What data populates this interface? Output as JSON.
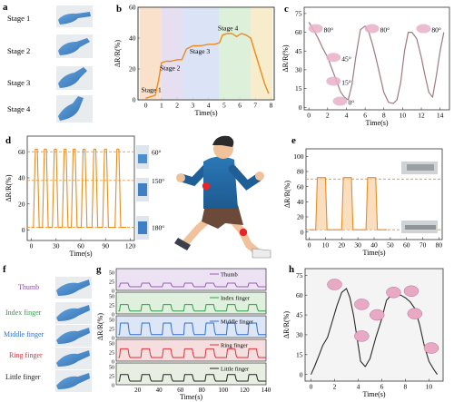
{
  "panels": {
    "a": {
      "letter": "a",
      "stages": [
        "Stage 1",
        "Stage 2",
        "Stage 3",
        "Stage 4"
      ]
    },
    "b": {
      "letter": "b"
    },
    "c": {
      "letter": "c"
    },
    "d": {
      "letter": "d"
    },
    "e": {
      "letter": "e"
    },
    "f": {
      "letter": "f"
    },
    "g": {
      "letter": "g"
    },
    "h": {
      "letter": "h"
    }
  },
  "colors": {
    "orange": "#ef8a1e",
    "mauve": "#a0787e",
    "dark": "#2a2a2a",
    "thumb": "#9b59b6",
    "index": "#2e9e44",
    "middle": "#2f6fd1",
    "ring": "#e0303a",
    "little": "#222222"
  },
  "chart_data": [
    {
      "panel": "b",
      "type": "line",
      "xlabel": "Time(s)",
      "ylabel": "ΔR/R(%)",
      "xlim": [
        -0.5,
        8.2
      ],
      "ylim": [
        0,
        60
      ],
      "xticks": [
        0,
        1,
        2,
        3,
        4,
        5,
        6,
        7,
        8
      ],
      "yticks": [
        0,
        20,
        40,
        60
      ],
      "regions": [
        {
          "from": -0.4,
          "to": 1.0,
          "color": "#f9dcc2"
        },
        {
          "from": 1.0,
          "to": 2.4,
          "color": "#e2d9ee"
        },
        {
          "from": 2.4,
          "to": 4.7,
          "color": "#d3dff5"
        },
        {
          "from": 4.7,
          "to": 6.7,
          "color": "#d7edd2"
        },
        {
          "from": 6.7,
          "to": 8.1,
          "color": "#f6eac3"
        }
      ],
      "annotations": [
        {
          "text": "Stage 1",
          "x": -0.3,
          "y": 5
        },
        {
          "text": "Stage 2",
          "x": 0.9,
          "y": 19
        },
        {
          "text": "Stage 3",
          "x": 2.8,
          "y": 30
        },
        {
          "text": "Stage 4",
          "x": 4.6,
          "y": 45
        }
      ],
      "series": [
        {
          "x": [
            0,
            0.6,
            0.8,
            1.0,
            1.3,
            1.6,
            2.0,
            2.3,
            2.6,
            2.8,
            3.0,
            3.5,
            4.0,
            4.4,
            4.7,
            4.9,
            5.2,
            5.5,
            5.8,
            6.1,
            6.4,
            6.7,
            7.0,
            7.3,
            7.6,
            7.85
          ],
          "y": [
            1,
            3,
            12,
            24,
            25,
            25,
            26,
            26,
            33,
            34,
            35,
            35,
            36,
            36,
            37,
            42,
            43,
            43,
            41,
            43,
            42,
            40,
            30,
            20,
            10,
            4
          ]
        }
      ]
    },
    {
      "panel": "c",
      "type": "line",
      "xlabel": "Time(s)",
      "ylabel": "ΔR/R(%)",
      "xlim": [
        -0.5,
        15
      ],
      "ylim": [
        -2,
        80
      ],
      "xticks": [
        0,
        2,
        4,
        6,
        8,
        10,
        12,
        14
      ],
      "yticks": [
        0,
        15,
        30,
        45,
        60,
        75
      ],
      "annotations": [
        {
          "text": "80°",
          "x": 1.6,
          "y": 60
        },
        {
          "text": "45°",
          "x": 3.5,
          "y": 37
        },
        {
          "text": "15°",
          "x": 3.5,
          "y": 18
        },
        {
          "text": "0°",
          "x": 4.2,
          "y": 2
        },
        {
          "text": "80°",
          "x": 7.6,
          "y": 60
        },
        {
          "text": "80°",
          "x": 13.1,
          "y": 60
        }
      ],
      "series": [
        {
          "x": [
            0,
            0.5,
            1.0,
            1.5,
            2.0,
            2.5,
            3.0,
            3.4,
            3.8,
            4.2,
            4.6,
            5.0,
            5.5,
            6.0,
            6.4,
            6.8,
            7.2,
            7.6,
            8.0,
            8.5,
            9.0,
            9.4,
            9.8,
            10.2,
            10.6,
            11.0,
            11.5,
            12.0,
            12.4,
            12.8,
            13.2,
            13.6,
            14.0,
            14.4
          ],
          "y": [
            68,
            62,
            55,
            47,
            40,
            30,
            20,
            12,
            8,
            6,
            18,
            40,
            62,
            65,
            60,
            50,
            38,
            25,
            12,
            4,
            3,
            6,
            20,
            45,
            60,
            60,
            55,
            40,
            25,
            12,
            8,
            25,
            45,
            60
          ]
        }
      ]
    },
    {
      "panel": "d",
      "type": "line",
      "xlabel": "Time(s)",
      "ylabel": "ΔR/R(%)",
      "xlim": [
        -5,
        125
      ],
      "ylim": [
        -8,
        72
      ],
      "xticks": [
        0,
        30,
        60,
        90,
        120
      ],
      "yticks": [
        0,
        20,
        40,
        60
      ],
      "reference_lines": [
        60,
        38,
        2
      ],
      "annotations": [
        {
          "text": "60°",
          "level": 60
        },
        {
          "text": "150°",
          "level": 38
        },
        {
          "text": "180°",
          "level": 2
        }
      ],
      "series": [
        {
          "peaks_x": [
            6,
            17,
            29,
            41,
            52,
            64,
            77,
            90,
            105
          ],
          "peak_y": 62,
          "base_y": 2
        }
      ]
    },
    {
      "panel": "e",
      "type": "line",
      "xlabel": "Time(s)",
      "ylabel": "ΔR/R(%)",
      "xlim": [
        -2,
        82
      ],
      "ylim": [
        -10,
        110
      ],
      "xticks": [
        0,
        10,
        20,
        30,
        40,
        50,
        60,
        70,
        80
      ],
      "yticks": [
        0,
        20,
        40,
        60,
        80,
        100
      ],
      "reference_lines": [
        70,
        3
      ],
      "series": [
        {
          "plateaus": [
            [
              4,
              11
            ],
            [
              20,
              27
            ],
            [
              35,
              42
            ]
          ],
          "peak_y": 72,
          "base_y": 3,
          "x_end": 48
        }
      ]
    },
    {
      "panel": "g",
      "type": "line",
      "xlabel": "Time(s)",
      "ylabel": "ΔR/R(%)",
      "xlim": [
        0,
        140
      ],
      "xticks": [
        20,
        40,
        60,
        80,
        100,
        120,
        140
      ],
      "yticks": [
        0,
        25,
        50
      ],
      "series": [
        {
          "name": "Thumb",
          "color": "#9b59b6",
          "bg": "#ece2f3",
          "base": 10,
          "amp": 10
        },
        {
          "name": "Index finger",
          "color": "#2e9e44",
          "bg": "#dff0de",
          "base": 8,
          "amp": 18
        },
        {
          "name": "Middle finger",
          "color": "#2f6fd1",
          "bg": "#dde6f6",
          "base": 8,
          "amp": 32
        },
        {
          "name": "Ring finger",
          "color": "#e0303a",
          "bg": "#f6dedf",
          "base": 10,
          "amp": 24
        },
        {
          "name": "Little finger",
          "color": "#222222",
          "bg": "#e6efe2",
          "base": 10,
          "amp": 18
        }
      ]
    },
    {
      "panel": "h",
      "type": "line",
      "xlabel": "Time(s)",
      "ylabel": "ΔR/R(%)",
      "xlim": [
        -0.5,
        11.2
      ],
      "ylim": [
        -5,
        80
      ],
      "xticks": [
        0,
        2,
        4,
        6,
        8,
        10
      ],
      "yticks": [
        0,
        15,
        30,
        45,
        60,
        75
      ],
      "series": [
        {
          "x": [
            0,
            0.3,
            0.7,
            1.0,
            1.4,
            1.8,
            2.2,
            2.6,
            3.0,
            3.3,
            3.6,
            3.9,
            4.2,
            4.6,
            5.0,
            5.5,
            6.0,
            6.4,
            6.8,
            7.2,
            7.6,
            8.0,
            8.4,
            8.8,
            9.2,
            9.6,
            10.0,
            10.4,
            10.7
          ],
          "y": [
            0,
            6,
            15,
            22,
            28,
            40,
            52,
            62,
            65,
            58,
            45,
            28,
            10,
            6,
            12,
            28,
            42,
            56,
            60,
            60,
            60,
            58,
            55,
            50,
            38,
            22,
            10,
            4,
            0
          ]
        }
      ]
    }
  ],
  "hand_labels": {
    "f": [
      "Thumb",
      "Index finger",
      "Middle finger",
      "Ring finger",
      "Little finger"
    ]
  }
}
